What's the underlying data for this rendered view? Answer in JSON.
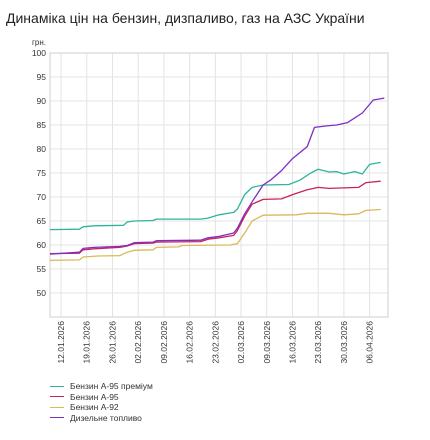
{
  "chart_data": {
    "type": "line",
    "title": "Динаміка цін на бензин, дизпаливо, газ на АЗС України",
    "ylabel": "грн.",
    "ylim": [
      45,
      100
    ],
    "yticks": [
      50,
      55,
      60,
      65,
      70,
      75,
      80,
      85,
      90,
      95,
      100
    ],
    "xlim": [
      "2026-01-09",
      "2026-04-11"
    ],
    "xticks": [
      "12.01.2026",
      "19.01.2026",
      "26.01.2026",
      "02.02.2026",
      "09.02.2026",
      "16.02.2026",
      "23.02.2026",
      "02.03.2026",
      "09.03.2026",
      "16.03.2026",
      "23.03.2026",
      "30.03.2026",
      "06.04.2026"
    ],
    "grid": true,
    "legend_position": "bottom-left",
    "series": [
      {
        "name": "Бензин А-95 преміум",
        "color": "#2bb59a",
        "points": [
          [
            "2026-01-09",
            63.2
          ],
          [
            "2026-01-17",
            63.3
          ],
          [
            "2026-01-18",
            63.8
          ],
          [
            "2026-01-21",
            64.0
          ],
          [
            "2026-01-29",
            64.1
          ],
          [
            "2026-01-30",
            64.8
          ],
          [
            "2026-02-01",
            65.0
          ],
          [
            "2026-02-06",
            65.1
          ],
          [
            "2026-02-07",
            65.4
          ],
          [
            "2026-02-19",
            65.4
          ],
          [
            "2026-02-21",
            65.6
          ],
          [
            "2026-02-24",
            66.3
          ],
          [
            "2026-02-28",
            66.8
          ],
          [
            "2026-03-01",
            67.5
          ],
          [
            "2026-03-03",
            70.5
          ],
          [
            "2026-03-05",
            72.0
          ],
          [
            "2026-03-08",
            72.5
          ],
          [
            "2026-03-15",
            72.6
          ],
          [
            "2026-03-18",
            73.5
          ],
          [
            "2026-03-21",
            75.0
          ],
          [
            "2026-03-23",
            75.8
          ],
          [
            "2026-03-26",
            75.2
          ],
          [
            "2026-03-28",
            75.3
          ],
          [
            "2026-03-30",
            74.8
          ],
          [
            "2026-04-02",
            75.3
          ],
          [
            "2026-04-04",
            74.8
          ],
          [
            "2026-04-06",
            76.8
          ],
          [
            "2026-04-09",
            77.2
          ]
        ]
      },
      {
        "name": "Бензин А-95",
        "color": "#c8235b",
        "points": [
          [
            "2026-01-09",
            58.2
          ],
          [
            "2026-01-17",
            58.3
          ],
          [
            "2026-01-18",
            59.0
          ],
          [
            "2026-01-21",
            59.2
          ],
          [
            "2026-01-28",
            59.5
          ],
          [
            "2026-01-30",
            59.8
          ],
          [
            "2026-02-01",
            60.3
          ],
          [
            "2026-02-06",
            60.4
          ],
          [
            "2026-02-07",
            60.6
          ],
          [
            "2026-02-19",
            60.7
          ],
          [
            "2026-02-21",
            61.2
          ],
          [
            "2026-02-24",
            61.5
          ],
          [
            "2026-02-28",
            62.0
          ],
          [
            "2026-03-01",
            63.0
          ],
          [
            "2026-03-03",
            66.0
          ],
          [
            "2026-03-05",
            68.5
          ],
          [
            "2026-03-08",
            69.5
          ],
          [
            "2026-03-13",
            69.6
          ],
          [
            "2026-03-16",
            70.5
          ],
          [
            "2026-03-20",
            71.5
          ],
          [
            "2026-03-23",
            72.0
          ],
          [
            "2026-03-26",
            71.8
          ],
          [
            "2026-04-03",
            72.0
          ],
          [
            "2026-04-05",
            73.0
          ],
          [
            "2026-04-09",
            73.3
          ]
        ]
      },
      {
        "name": "Бензин А-92",
        "color": "#d9b95a",
        "points": [
          [
            "2026-01-09",
            56.8
          ],
          [
            "2026-01-17",
            56.9
          ],
          [
            "2026-01-18",
            57.5
          ],
          [
            "2026-01-22",
            57.7
          ],
          [
            "2026-01-28",
            57.8
          ],
          [
            "2026-01-30",
            58.5
          ],
          [
            "2026-02-01",
            58.9
          ],
          [
            "2026-02-06",
            59.0
          ],
          [
            "2026-02-07",
            59.5
          ],
          [
            "2026-02-13",
            59.6
          ],
          [
            "2026-02-14",
            59.9
          ],
          [
            "2026-02-27",
            60.0
          ],
          [
            "2026-03-01",
            60.3
          ],
          [
            "2026-03-03",
            62.5
          ],
          [
            "2026-03-05",
            65.0
          ],
          [
            "2026-03-08",
            66.2
          ],
          [
            "2026-03-17",
            66.3
          ],
          [
            "2026-03-20",
            66.6
          ],
          [
            "2026-03-26",
            66.6
          ],
          [
            "2026-03-30",
            66.3
          ],
          [
            "2026-04-03",
            66.5
          ],
          [
            "2026-04-05",
            67.2
          ],
          [
            "2026-04-09",
            67.4
          ]
        ]
      },
      {
        "name": "Дизельне топливо",
        "color": "#7d2ec2",
        "points": [
          [
            "2026-01-09",
            58.1
          ],
          [
            "2026-01-17",
            58.5
          ],
          [
            "2026-01-18",
            59.3
          ],
          [
            "2026-01-21",
            59.5
          ],
          [
            "2026-01-28",
            59.7
          ],
          [
            "2026-01-30",
            59.9
          ],
          [
            "2026-02-01",
            60.5
          ],
          [
            "2026-02-06",
            60.6
          ],
          [
            "2026-02-07",
            60.9
          ],
          [
            "2026-02-19",
            61.0
          ],
          [
            "2026-02-21",
            61.5
          ],
          [
            "2026-02-24",
            61.8
          ],
          [
            "2026-02-28",
            62.5
          ],
          [
            "2026-03-01",
            63.5
          ],
          [
            "2026-03-03",
            66.5
          ],
          [
            "2026-03-05",
            69.0
          ],
          [
            "2026-03-08",
            72.5
          ],
          [
            "2026-03-10",
            73.5
          ],
          [
            "2026-03-13",
            75.5
          ],
          [
            "2026-03-16",
            78.0
          ],
          [
            "2026-03-20",
            80.5
          ],
          [
            "2026-03-22",
            84.5
          ],
          [
            "2026-03-25",
            84.8
          ],
          [
            "2026-03-28",
            85.0
          ],
          [
            "2026-03-31",
            85.5
          ],
          [
            "2026-04-04",
            87.5
          ],
          [
            "2026-04-07",
            90.2
          ],
          [
            "2026-04-10",
            90.6
          ]
        ]
      }
    ]
  }
}
